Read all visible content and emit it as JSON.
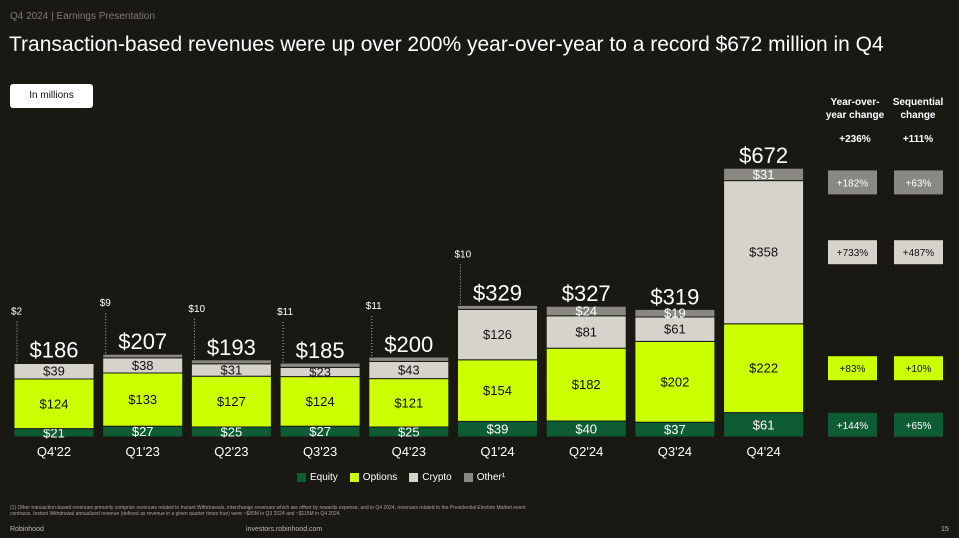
{
  "header": {
    "tag": "Q4 2024 | Earnings Presentation",
    "title": "Transaction-based revenues were up over 200% year-over-year to a record $672 million in Q4"
  },
  "units_label": "In millions",
  "columns": {
    "yoy_header": "Year-over-\nyear change",
    "seq_header": "Sequential\nchange"
  },
  "changes": [
    {
      "segment": "Total",
      "yoy": "+236%",
      "seq": "+111%"
    },
    {
      "segment": "Other",
      "yoy": "+182%",
      "seq": "+63%"
    },
    {
      "segment": "Crypto",
      "yoy": "+733%",
      "seq": "+487%"
    },
    {
      "segment": "Options",
      "yoy": "+83%",
      "seq": "+10%"
    },
    {
      "segment": "Equity",
      "yoy": "+144%",
      "seq": "+65%"
    }
  ],
  "chart_data": {
    "type": "bar",
    "stacked": true,
    "categories": [
      "Q4'22",
      "Q1'23",
      "Q2'23",
      "Q3'23",
      "Q4'23",
      "Q1'24",
      "Q2'24",
      "Q3'24",
      "Q4'24"
    ],
    "series": [
      {
        "name": "Equity",
        "color": "#0d5c34",
        "values": [
          21,
          27,
          25,
          27,
          25,
          39,
          40,
          37,
          61
        ],
        "labels": [
          "$21",
          "$27",
          "$25",
          "$27",
          "$25",
          "$39",
          "$40",
          "$37",
          "$61"
        ]
      },
      {
        "name": "Options",
        "color": "#ccff00",
        "values": [
          124,
          133,
          127,
          124,
          121,
          154,
          182,
          202,
          222
        ],
        "labels": [
          "$124",
          "$133",
          "$127",
          "$124",
          "$121",
          "$154",
          "$182",
          "$202",
          "$222"
        ]
      },
      {
        "name": "Crypto",
        "color": "#d6d3cc",
        "values": [
          39,
          38,
          31,
          23,
          43,
          126,
          81,
          61,
          358
        ],
        "labels": [
          "$39",
          "$38",
          "$31",
          "$23",
          "$43",
          "$126",
          "$81",
          "$61",
          "$358"
        ]
      },
      {
        "name": "Other¹",
        "color": "#8a8882",
        "values": [
          2,
          9,
          10,
          11,
          11,
          10,
          24,
          19,
          31
        ],
        "labels": [
          "$2",
          "$9",
          "$10",
          "$11",
          "$11",
          "$10",
          "$24",
          "$19",
          "$31"
        ]
      }
    ],
    "totals": [
      186,
      207,
      193,
      185,
      200,
      329,
      327,
      319,
      672
    ],
    "total_labels": [
      "$186",
      "$207",
      "$193",
      "$185",
      "$200",
      "$329",
      "$327",
      "$319",
      "$672"
    ],
    "other_callouts": [
      "$2",
      "$9",
      "$10",
      "$11",
      "$11",
      "$10",
      "",
      "",
      ""
    ],
    "ylim": [
      0,
      700
    ],
    "grid": false,
    "legend_position": "bottom"
  },
  "footer": {
    "footnote": "(1) Other transaction-based revenues primarily comprise revenues related to Instant Withdrawals, interchange revenues which are offset by rewards expense, and in Q4 2024, revenues related to the Presidential Election Market event contracts. Instant Withdrawal annualized revenue (defined as revenue in a given quarter times four) were ~$85M in Q3 2024 and ~$115M in Q4 2024.",
    "brand": "Robinhood",
    "url": "investors.robinhood.com",
    "page": "15"
  }
}
